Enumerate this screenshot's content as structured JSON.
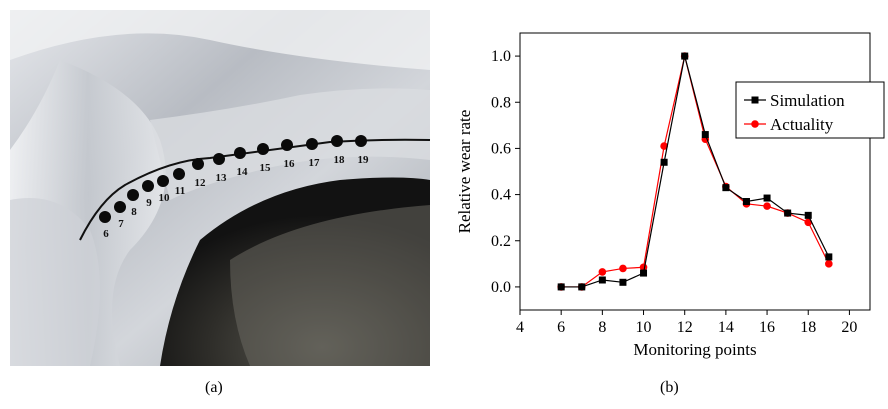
{
  "panel_a": {
    "caption": "(a)",
    "points": [
      6,
      7,
      8,
      9,
      10,
      11,
      12,
      13,
      14,
      15,
      16,
      17,
      18,
      19
    ]
  },
  "panel_b": {
    "caption": "(b)"
  },
  "chart_data": {
    "type": "line",
    "xlabel": "Monitoring points",
    "ylabel": "Relative wear rate",
    "xlim": [
      4,
      21
    ],
    "ylim": [
      -0.1,
      1.1
    ],
    "xticks": [
      4,
      6,
      8,
      10,
      12,
      14,
      16,
      18,
      20
    ],
    "yticks": [
      0.0,
      0.2,
      0.4,
      0.6,
      0.8,
      1.0
    ],
    "grid": false,
    "legend_position": "top-right",
    "x": [
      6,
      7,
      8,
      9,
      10,
      11,
      12,
      13,
      14,
      15,
      16,
      17,
      18,
      19
    ],
    "series": [
      {
        "name": "Simulation",
        "color": "#000000",
        "marker": "square",
        "values": [
          0.0,
          0.0,
          0.03,
          0.02,
          0.06,
          0.54,
          1.0,
          0.66,
          0.43,
          0.37,
          0.385,
          0.32,
          0.31,
          0.13
        ]
      },
      {
        "name": "Actuality",
        "color": "#ff0000",
        "marker": "circle",
        "values": [
          0.0,
          0.0,
          0.065,
          0.08,
          0.085,
          0.61,
          1.0,
          0.64,
          0.435,
          0.36,
          0.35,
          0.32,
          0.28,
          0.1
        ]
      }
    ]
  }
}
